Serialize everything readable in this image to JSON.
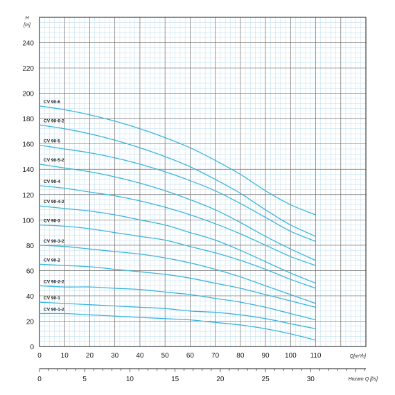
{
  "chart_data": {
    "type": "line",
    "title": "",
    "ylabel_top": "H",
    "ylabel_unit": "[m]",
    "xlabel": "Q[m³/h]",
    "x2label": "Hozam Q [l/s]",
    "xlim": [
      0,
      130
    ],
    "ylim": [
      0,
      260
    ],
    "x2lim": [
      0,
      36.11
    ],
    "xticks": [
      "0",
      "10",
      "20",
      "30",
      "40",
      "50",
      "60",
      "70",
      "80",
      "90",
      "100",
      "110"
    ],
    "x2ticks": [
      "0",
      "5",
      "10",
      "15",
      "20",
      "25",
      "30"
    ],
    "yticks": [
      "0",
      "20",
      "40",
      "60",
      "80",
      "100",
      "120",
      "140",
      "160",
      "180",
      "200",
      "220",
      "240"
    ],
    "grid": true,
    "series_color": "#3cb4dc",
    "x": [
      0,
      10,
      20,
      30,
      40,
      50,
      60,
      70,
      80,
      90,
      100,
      110
    ],
    "series": [
      {
        "name": "CV 90-6",
        "values": [
          190,
          187,
          183,
          178,
          172,
          165,
          157,
          147,
          136,
          123,
          112,
          104
        ]
      },
      {
        "name": "CV 90-6-2",
        "values": [
          175,
          172,
          168,
          163,
          157,
          150,
          142,
          132,
          121,
          108,
          96,
          87
        ]
      },
      {
        "name": "CV 90-5",
        "values": [
          159,
          156,
          153,
          149,
          144,
          138,
          131,
          123,
          113,
          102,
          91,
          83
        ]
      },
      {
        "name": "CV 90-5-2",
        "values": [
          144,
          141,
          138,
          134,
          129,
          123,
          116,
          108,
          98,
          87,
          77,
          68
        ]
      },
      {
        "name": "CV 90-4",
        "values": [
          127,
          125,
          122,
          119,
          115,
          110,
          104,
          97,
          89,
          80,
          71,
          64
        ]
      },
      {
        "name": "CV 90-4-2",
        "values": [
          111,
          109,
          107,
          104,
          100,
          96,
          90,
          84,
          76,
          67,
          58,
          50
        ]
      },
      {
        "name": "CV 90-3",
        "values": [
          96,
          95,
          93,
          90,
          87,
          84,
          79,
          74,
          68,
          61,
          53,
          46
        ]
      },
      {
        "name": "CV 90-3-2",
        "values": [
          80,
          79,
          77,
          75,
          73,
          70,
          66,
          61,
          55,
          48,
          41,
          34
        ]
      },
      {
        "name": "CV 90-2",
        "values": [
          65,
          64,
          63,
          61,
          59,
          57,
          54,
          50,
          46,
          41,
          36,
          31
        ]
      },
      {
        "name": "CV 90-2-2",
        "values": [
          48,
          47,
          47,
          46,
          45,
          43,
          41,
          38,
          35,
          31,
          26,
          21
        ]
      },
      {
        "name": "CV 90-1",
        "values": [
          35,
          34,
          33,
          32,
          31,
          30,
          28,
          27,
          25,
          22,
          18,
          14
        ]
      },
      {
        "name": "CV 90-1-2",
        "values": [
          26,
          26,
          25,
          24,
          23,
          22,
          21,
          19,
          17,
          14,
          10,
          5
        ]
      }
    ]
  }
}
